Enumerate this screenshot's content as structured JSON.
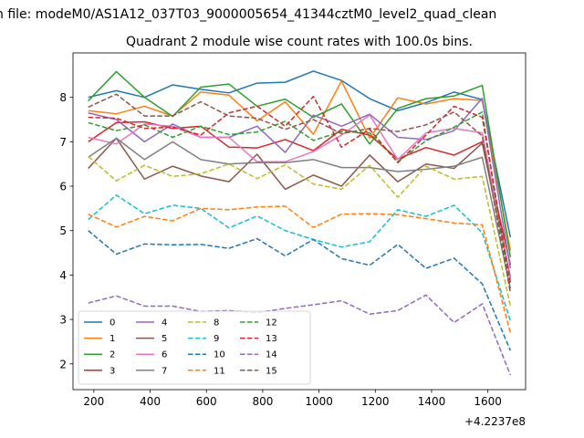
{
  "figure": {
    "suptitle": "n file: modeM0/AS1A12_037T03_9000005654_41344cztM0_level2_quad_clean"
  },
  "chart_data": {
    "type": "line",
    "title": "Quadrant 2 module wise count rates with 100.0s bins.",
    "xlabel": "",
    "ylabel": "",
    "x_offset_label": "+4.2237e8",
    "xlim": [
      126,
      1734
    ],
    "ylim": [
      1.42,
      9.0
    ],
    "xticks": [
      200,
      400,
      600,
      800,
      1000,
      1200,
      1400,
      1600
    ],
    "yticks": [
      2,
      3,
      4,
      5,
      6,
      7,
      8
    ],
    "grid": false,
    "legend": {
      "placement": "lower-left",
      "columns": 4
    },
    "x": [
      180,
      280,
      380,
      480,
      580,
      680,
      780,
      880,
      980,
      1080,
      1180,
      1280,
      1380,
      1480,
      1580,
      1680
    ],
    "series": [
      {
        "name": "0",
        "color": "#1f77b4",
        "dash": "solid",
        "values": [
          8.0,
          8.15,
          8.0,
          8.28,
          8.18,
          8.1,
          8.32,
          8.34,
          8.59,
          8.38,
          7.97,
          7.7,
          7.88,
          8.12,
          7.95,
          4.85
        ]
      },
      {
        "name": "1",
        "color": "#ff7f0e",
        "dash": "solid",
        "values": [
          7.7,
          7.63,
          7.8,
          7.58,
          8.12,
          8.05,
          7.47,
          7.9,
          7.17,
          8.37,
          7.08,
          7.99,
          7.85,
          7.97,
          7.93,
          4.55
        ]
      },
      {
        "name": "2",
        "color": "#2ca02c",
        "dash": "solid",
        "values": [
          7.92,
          8.58,
          8.0,
          7.57,
          8.23,
          8.3,
          7.8,
          7.96,
          7.55,
          7.85,
          6.95,
          7.75,
          7.97,
          8.03,
          8.27,
          4.4
        ]
      },
      {
        "name": "3",
        "color": "#d62728",
        "dash": "solid",
        "values": [
          7.0,
          7.43,
          7.45,
          7.3,
          7.35,
          6.88,
          6.86,
          7.05,
          6.8,
          7.28,
          7.15,
          6.61,
          6.87,
          6.7,
          7.0,
          4.23
        ]
      },
      {
        "name": "4",
        "color": "#9467bd",
        "dash": "solid",
        "values": [
          7.65,
          7.5,
          7.0,
          7.4,
          7.1,
          7.1,
          7.35,
          6.76,
          7.6,
          7.35,
          7.62,
          7.1,
          7.05,
          7.25,
          7.98,
          4.15
        ]
      },
      {
        "name": "5",
        "color": "#8c564b",
        "dash": "solid",
        "values": [
          6.4,
          7.08,
          6.16,
          6.45,
          6.23,
          6.1,
          6.72,
          5.93,
          6.25,
          6.0,
          6.7,
          6.1,
          6.5,
          6.4,
          6.97,
          3.95
        ]
      },
      {
        "name": "6",
        "color": "#e377c2",
        "dash": "solid",
        "values": [
          7.1,
          6.95,
          7.4,
          7.35,
          7.1,
          7.1,
          6.55,
          6.55,
          6.78,
          7.15,
          7.6,
          6.6,
          7.2,
          7.3,
          7.2,
          3.9
        ]
      },
      {
        "name": "7",
        "color": "#7f7f7f",
        "dash": "solid",
        "values": [
          6.65,
          7.08,
          6.6,
          7.0,
          6.6,
          6.5,
          6.53,
          6.53,
          6.6,
          6.42,
          6.42,
          6.33,
          6.38,
          6.45,
          6.65,
          3.7
        ]
      },
      {
        "name": "8",
        "color": "#bcbd22",
        "dash": "dashed",
        "values": [
          6.67,
          6.12,
          6.47,
          6.22,
          6.28,
          6.5,
          6.17,
          6.48,
          6.05,
          5.93,
          6.47,
          5.75,
          6.45,
          6.16,
          6.22,
          3.3
        ]
      },
      {
        "name": "9",
        "color": "#17becf",
        "dash": "dashed",
        "values": [
          5.25,
          5.8,
          5.38,
          5.57,
          5.5,
          5.06,
          5.33,
          5.0,
          4.8,
          4.63,
          4.75,
          5.47,
          5.32,
          5.57,
          4.95,
          2.97
        ]
      },
      {
        "name": "10",
        "color": "#1f77b4",
        "dash": "dashed",
        "values": [
          5.0,
          4.47,
          4.7,
          4.68,
          4.69,
          4.6,
          4.82,
          4.43,
          4.8,
          4.37,
          4.22,
          4.69,
          4.15,
          4.38,
          3.8,
          2.3
        ]
      },
      {
        "name": "11",
        "color": "#ff7f0e",
        "dash": "dashed",
        "values": [
          5.37,
          5.08,
          5.32,
          5.22,
          5.5,
          5.47,
          5.53,
          5.55,
          5.07,
          5.37,
          5.38,
          5.36,
          5.27,
          5.17,
          5.13,
          2.7
        ]
      },
      {
        "name": "12",
        "color": "#2ca02c",
        "dash": "dashed",
        "values": [
          7.43,
          7.25,
          7.38,
          7.1,
          7.35,
          7.16,
          7.22,
          7.46,
          7.03,
          7.23,
          7.2,
          6.55,
          7.02,
          7.33,
          7.67,
          3.6
        ]
      },
      {
        "name": "13",
        "color": "#d62728",
        "dash": "dashed",
        "values": [
          7.55,
          7.53,
          7.3,
          7.33,
          7.15,
          7.65,
          7.8,
          7.35,
          8.02,
          6.88,
          7.28,
          6.53,
          7.15,
          7.8,
          7.55,
          3.82
        ]
      },
      {
        "name": "14",
        "color": "#9467bd",
        "dash": "dashed",
        "values": [
          3.37,
          3.53,
          3.3,
          3.3,
          3.18,
          3.2,
          3.15,
          3.25,
          3.33,
          3.42,
          3.12,
          3.2,
          3.55,
          2.93,
          3.35,
          1.75
        ]
      },
      {
        "name": "15",
        "color": "#8c564b",
        "dash": "dashed",
        "values": [
          7.78,
          8.07,
          7.58,
          7.58,
          7.9,
          7.58,
          7.53,
          7.28,
          7.5,
          7.18,
          7.3,
          7.23,
          7.38,
          7.67,
          7.13,
          3.6
        ]
      }
    ]
  }
}
